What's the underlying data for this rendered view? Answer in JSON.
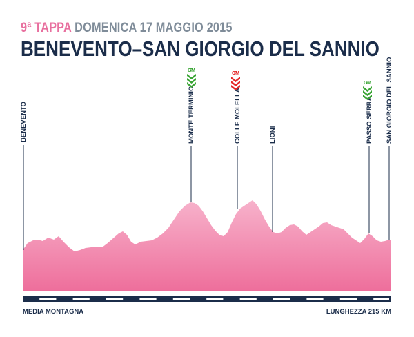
{
  "header": {
    "stage": "9ª TAPPA",
    "date": "DOMENICA 17 MAGGIO 2015",
    "route": "BENEVENTO–SAN GIORGIO DEL SANNIO"
  },
  "colors": {
    "stage": "#e86f9e",
    "date": "#7f8c99",
    "title": "#1b2d4a",
    "profile_top": "#f6a8c4",
    "profile_bottom": "#ef6f9c",
    "gpm_green": "#3aa535",
    "gpm_red": "#e52b2b"
  },
  "places": [
    {
      "name": "BENEVENTO",
      "gpm": null
    },
    {
      "name": "MONTE TERMINIO",
      "gpm": "green"
    },
    {
      "name": "COLLE MOLELLA",
      "gpm": "red"
    },
    {
      "name": "LIONI",
      "gpm": null
    },
    {
      "name": "PASSO SERRA",
      "gpm": "green"
    },
    {
      "name": "SAN GIORGIO DEL SANNIO",
      "gpm": null
    }
  ],
  "gpm_label": "GPM",
  "footer": {
    "category": "MEDIA MONTAGNA",
    "distance": "LUNGHEZZA 215 KM"
  }
}
